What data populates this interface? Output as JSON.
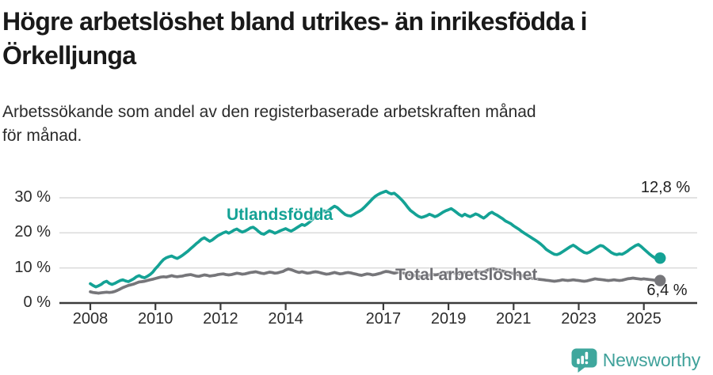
{
  "chart_data": {
    "type": "line",
    "title": "Högre arbetslöshet bland utrikes- än inrikesfödda i Örkelljunga",
    "subtitle": "Arbetssökande som andel av den registerbaserade arbetskraften månad för månad.",
    "x_start_year": 2008,
    "x_step_months": 1,
    "xlim": [
      2007.8,
      2025.95
    ],
    "ylim": [
      0,
      33
    ],
    "grid": "horizontal",
    "legend": "inline-labels",
    "y_ticks": [
      {
        "value": 0,
        "label": "0 %"
      },
      {
        "value": 10,
        "label": "10 %"
      },
      {
        "value": 20,
        "label": "20 %"
      },
      {
        "value": 30,
        "label": "30 %"
      }
    ],
    "x_ticks": [
      {
        "year": 2008,
        "label": "2008"
      },
      {
        "year": 2010,
        "label": "2010"
      },
      {
        "year": 2012,
        "label": "2012"
      },
      {
        "year": 2014,
        "label": "2014"
      },
      {
        "year": 2017,
        "label": "2017"
      },
      {
        "year": 2019,
        "label": "2019"
      },
      {
        "year": 2021,
        "label": "2021"
      },
      {
        "year": 2023,
        "label": "2023"
      },
      {
        "year": 2025,
        "label": "2025"
      }
    ],
    "series": [
      {
        "name": "Utlandsfödda",
        "color": "#14a295",
        "end_label": "12,8 %",
        "end_value": 12.8,
        "values": [
          5.5,
          5.0,
          4.6,
          4.9,
          5.3,
          5.9,
          6.2,
          5.6,
          5.3,
          5.6,
          6.0,
          6.4,
          6.6,
          6.3,
          6.1,
          6.5,
          6.9,
          7.5,
          7.8,
          7.4,
          7.2,
          7.6,
          8.1,
          8.8,
          9.8,
          10.6,
          11.6,
          12.4,
          12.9,
          13.2,
          13.4,
          13.0,
          12.7,
          13.1,
          13.6,
          14.2,
          14.8,
          15.5,
          16.2,
          16.9,
          17.5,
          18.2,
          18.6,
          18.1,
          17.6,
          18.0,
          18.6,
          19.2,
          19.6,
          20.0,
          20.3,
          19.9,
          20.3,
          20.8,
          21.1,
          20.6,
          20.2,
          20.5,
          20.9,
          21.4,
          21.6,
          21.1,
          20.4,
          19.8,
          19.6,
          20.1,
          20.6,
          20.3,
          19.9,
          20.2,
          20.6,
          20.9,
          21.2,
          20.8,
          20.5,
          20.9,
          21.4,
          21.9,
          22.4,
          22.1,
          22.6,
          23.2,
          23.9,
          24.6,
          25.4,
          25.9,
          26.3,
          26.0,
          26.5,
          27.1,
          27.6,
          27.2,
          26.5,
          25.8,
          25.2,
          24.9,
          24.8,
          25.2,
          25.7,
          26.1,
          26.6,
          27.3,
          28.1,
          28.9,
          29.7,
          30.4,
          30.9,
          31.3,
          31.6,
          31.9,
          31.4,
          31.1,
          31.3,
          30.7,
          30.0,
          29.2,
          28.3,
          27.3,
          26.4,
          25.8,
          25.2,
          24.7,
          24.4,
          24.6,
          24.9,
          25.3,
          25.0,
          24.6,
          24.9,
          25.4,
          25.9,
          26.3,
          26.6,
          26.9,
          26.4,
          25.8,
          25.2,
          24.8,
          25.3,
          24.9,
          24.6,
          25.0,
          25.4,
          25.1,
          24.6,
          24.2,
          24.8,
          25.5,
          25.9,
          25.4,
          25.0,
          24.5,
          24.0,
          23.4,
          23.0,
          22.6,
          22.0,
          21.5,
          21.0,
          20.4,
          19.9,
          19.4,
          18.9,
          18.4,
          17.9,
          17.4,
          16.8,
          16.1,
          15.3,
          14.8,
          14.3,
          13.9,
          13.8,
          14.1,
          14.6,
          15.1,
          15.6,
          16.1,
          16.5,
          16.0,
          15.4,
          14.9,
          14.4,
          14.2,
          14.5,
          15.0,
          15.5,
          16.0,
          16.4,
          16.2,
          15.6,
          15.0,
          14.4,
          14.0,
          13.8,
          14.0,
          13.9,
          14.3,
          14.8,
          15.4,
          15.9,
          16.4,
          16.7,
          16.1,
          15.4,
          14.7,
          14.0,
          13.4,
          12.9,
          12.4,
          12.8
        ]
      },
      {
        "name": "Total arbetslöshet",
        "color": "#76767a",
        "end_label": "6,4 %",
        "end_value": 6.4,
        "values": [
          3.2,
          3.0,
          2.9,
          2.8,
          2.9,
          3.0,
          3.1,
          3.0,
          3.1,
          3.3,
          3.6,
          4.0,
          4.4,
          4.7,
          5.0,
          5.2,
          5.4,
          5.7,
          6.0,
          6.1,
          6.2,
          6.4,
          6.6,
          6.8,
          7.0,
          7.2,
          7.4,
          7.5,
          7.4,
          7.6,
          7.8,
          7.6,
          7.5,
          7.6,
          7.7,
          7.9,
          8.0,
          8.1,
          7.9,
          7.7,
          7.6,
          7.8,
          8.0,
          7.9,
          7.7,
          7.8,
          7.9,
          8.1,
          8.2,
          8.3,
          8.1,
          8.0,
          8.1,
          8.3,
          8.5,
          8.4,
          8.2,
          8.3,
          8.5,
          8.7,
          8.8,
          8.9,
          8.7,
          8.5,
          8.4,
          8.6,
          8.8,
          8.7,
          8.5,
          8.6,
          8.8,
          9.0,
          9.4,
          9.7,
          9.5,
          9.2,
          8.9,
          8.7,
          8.9,
          8.7,
          8.5,
          8.6,
          8.8,
          8.9,
          8.8,
          8.6,
          8.4,
          8.2,
          8.3,
          8.5,
          8.7,
          8.5,
          8.3,
          8.4,
          8.6,
          8.7,
          8.6,
          8.4,
          8.2,
          8.0,
          7.9,
          8.1,
          8.3,
          8.2,
          8.0,
          8.1,
          8.3,
          8.5,
          8.8,
          9.0,
          8.9,
          8.7,
          8.5,
          8.7,
          8.9,
          8.7,
          8.4,
          8.2,
          8.0,
          7.9,
          7.8,
          7.6,
          7.5,
          7.6,
          7.8,
          8.0,
          8.2,
          8.0,
          8.1,
          8.3,
          8.5,
          8.6,
          8.7,
          8.8,
          8.6,
          8.4,
          8.3,
          8.5,
          8.7,
          8.5,
          8.3,
          8.4,
          8.6,
          8.7,
          8.8,
          8.9,
          9.2,
          9.6,
          9.8,
          9.7,
          9.5,
          9.3,
          9.1,
          8.9,
          8.7,
          8.6,
          8.4,
          8.2,
          8.0,
          7.8,
          7.6,
          7.4,
          7.2,
          7.0,
          6.9,
          6.8,
          6.7,
          6.6,
          6.5,
          6.4,
          6.3,
          6.2,
          6.3,
          6.4,
          6.6,
          6.5,
          6.4,
          6.5,
          6.6,
          6.5,
          6.4,
          6.3,
          6.2,
          6.3,
          6.5,
          6.7,
          6.9,
          6.8,
          6.7,
          6.6,
          6.5,
          6.4,
          6.5,
          6.6,
          6.5,
          6.4,
          6.5,
          6.7,
          6.9,
          7.0,
          7.1,
          7.0,
          6.9,
          6.8,
          6.9,
          6.8,
          6.7,
          6.6,
          6.5,
          6.4,
          6.4
        ]
      }
    ]
  },
  "footer": {
    "brand": "Newsworthy"
  },
  "colors": {
    "teal": "#14a295",
    "gray_line": "#76767a",
    "gray_label": "#6f6f74",
    "axis": "#3b3b3b",
    "grid": "#d9d9d9",
    "logo": "#3fa79d"
  }
}
